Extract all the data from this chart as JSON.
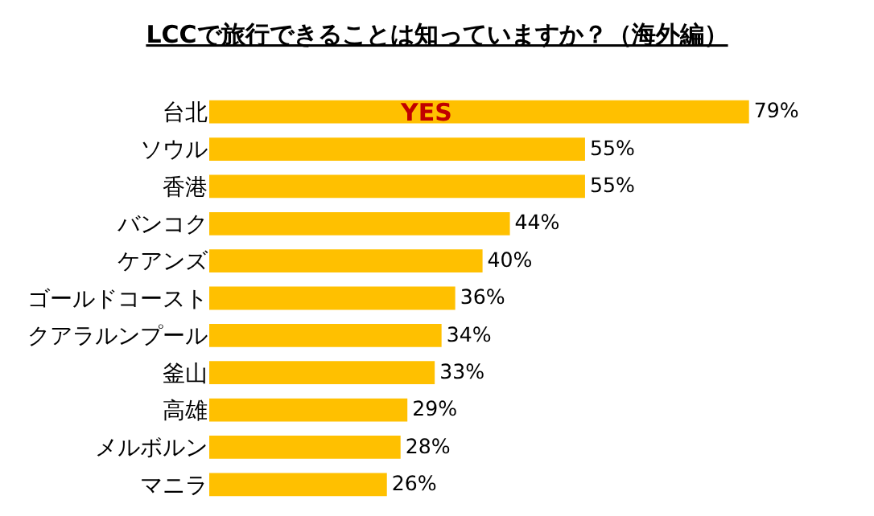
{
  "chart_data": {
    "type": "bar",
    "orientation": "horizontal",
    "title": "LCCで旅行できることは知っていますか？（海外編）",
    "categories": [
      "台北",
      "ソウル",
      "香港",
      "バンコク",
      "ケアンズ",
      "ゴールドコースト",
      "クアラルンプール",
      "釜山",
      "高雄",
      "メルボルン",
      "マニラ"
    ],
    "values": [
      79,
      55,
      55,
      44,
      40,
      36,
      34,
      33,
      29,
      28,
      26
    ],
    "value_labels": [
      "79%",
      "55%",
      "55%",
      "44%",
      "40%",
      "36%",
      "34%",
      "33%",
      "29%",
      "28%",
      "26%"
    ],
    "color": "#ffc000",
    "tick_labels": "y",
    "annotations": [
      "YES"
    ]
  }
}
